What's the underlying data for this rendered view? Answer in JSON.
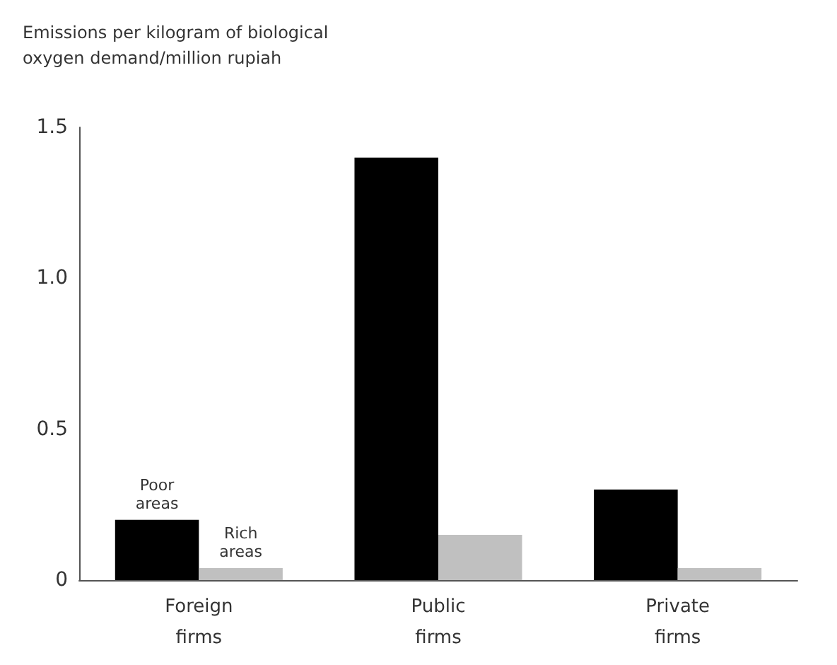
{
  "chart_data": {
    "type": "bar",
    "ylabel": "Emissions per kilogram of biological oxygen demand/million rupiah",
    "categories": [
      "Foreign firms",
      "Public firms",
      "Private firms"
    ],
    "series": [
      {
        "name": "Poor areas",
        "color": "#000000",
        "values": [
          0.2,
          1.4,
          0.3
        ]
      },
      {
        "name": "Rich areas",
        "color": "#c0c0c0",
        "values": [
          0.04,
          0.15,
          0.04
        ]
      }
    ],
    "ylim": [
      0,
      1.5
    ],
    "yticks": [
      0,
      {
        "value": 0.5,
        "label": "0.5"
      },
      {
        "value": 1,
        "label": "1.0"
      },
      {
        "value": 1.5,
        "label": "1.5"
      }
    ],
    "grid": false,
    "legend": false
  }
}
